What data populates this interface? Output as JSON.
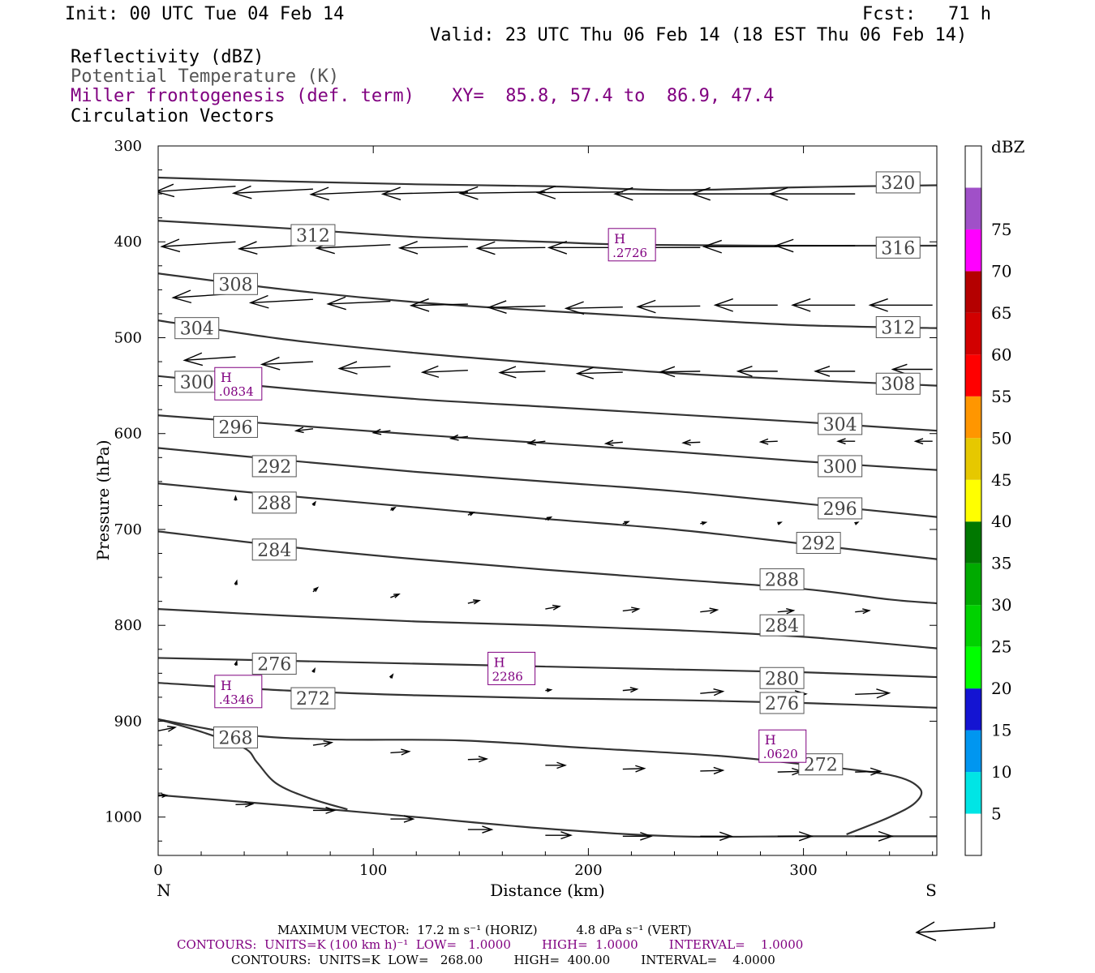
{
  "header": {
    "init": "Init: 00 UTC Tue 04 Feb 14",
    "fcst": "Fcst:   71 h",
    "valid": "Valid: 23 UTC Thu 06 Feb 14 (18 EST Thu 06 Feb 14)"
  },
  "legend_lines": {
    "reflectivity": "Reflectivity (dBZ)",
    "theta": "Potential Temperature (K)",
    "miller": "Miller frontogenesis (def. term)",
    "xy": "XY=  85.8, 57.4 to  86.9, 47.4",
    "circulation": "Circulation Vectors"
  },
  "colors": {
    "contour": "#333333",
    "purple": "#800080",
    "box_stroke": "#555555"
  },
  "chart_data": {
    "type": "contour",
    "xlabel": "Distance (km)",
    "ylabel": "Pressure (hPa)",
    "xlim": [
      0,
      362
    ],
    "ylim": [
      1040,
      300
    ],
    "x_ticks": [
      "0",
      "100",
      "200",
      "300"
    ],
    "y_ticks": [
      "300",
      "400",
      "500",
      "600",
      "700",
      "800",
      "900",
      "1000"
    ],
    "x_tick_values": [
      0,
      100,
      200,
      300
    ],
    "y_tick_values": [
      300,
      400,
      500,
      600,
      700,
      800,
      900,
      1000
    ],
    "left_end": "N",
    "right_end": "S",
    "theta_contours": [
      {
        "label": "320",
        "lx": 344,
        "lp": 338,
        "pts": [
          [
            0,
            333
          ],
          [
            60,
            337
          ],
          [
            120,
            340
          ],
          [
            180,
            342
          ],
          [
            240,
            346
          ],
          [
            300,
            343
          ],
          [
            362,
            341
          ]
        ]
      },
      {
        "label": "316",
        "lx": 344,
        "lp": 406,
        "pts": [
          [
            0,
            378
          ],
          [
            60,
            386
          ],
          [
            120,
            395
          ],
          [
            180,
            400
          ],
          [
            220,
            403
          ],
          [
            280,
            404
          ],
          [
            362,
            404
          ]
        ]
      },
      {
        "label": "312",
        "lx": 344,
        "lp": 489,
        "pts": [
          [
            0,
            433
          ],
          [
            60,
            450
          ],
          [
            120,
            463
          ],
          [
            180,
            472
          ],
          [
            240,
            480
          ],
          [
            300,
            487
          ],
          [
            362,
            490
          ]
        ]
      },
      {
        "label": "308",
        "lx": 344,
        "lp": 548,
        "pts": [
          [
            0,
            482
          ],
          [
            60,
            502
          ],
          [
            120,
            516
          ],
          [
            180,
            527
          ],
          [
            240,
            537
          ],
          [
            300,
            544
          ],
          [
            362,
            550
          ]
        ]
      },
      {
        "label": "304",
        "lx": 317,
        "lp": 590,
        "pts": [
          [
            0,
            540
          ],
          [
            60,
            553
          ],
          [
            120,
            564
          ],
          [
            180,
            572
          ],
          [
            240,
            580
          ],
          [
            300,
            588
          ],
          [
            362,
            597
          ]
        ]
      },
      {
        "label": "300",
        "lx": 317,
        "lp": 634,
        "pts": [
          [
            0,
            581
          ],
          [
            60,
            591
          ],
          [
            120,
            601
          ],
          [
            180,
            610
          ],
          [
            240,
            619
          ],
          [
            300,
            629
          ],
          [
            362,
            638
          ]
        ]
      },
      {
        "label": "296",
        "lx": 317,
        "lp": 678,
        "pts": [
          [
            0,
            615
          ],
          [
            60,
            628
          ],
          [
            120,
            640
          ],
          [
            180,
            650
          ],
          [
            240,
            660
          ],
          [
            300,
            673
          ],
          [
            362,
            687
          ]
        ]
      },
      {
        "label": "292",
        "lx": 307,
        "lp": 714,
        "pts": [
          [
            0,
            652
          ],
          [
            60,
            665
          ],
          [
            120,
            677
          ],
          [
            180,
            689
          ],
          [
            240,
            700
          ],
          [
            300,
            715
          ],
          [
            362,
            731
          ]
        ]
      },
      {
        "label": "288",
        "lx": 290,
        "lp": 752,
        "pts": [
          [
            0,
            702
          ],
          [
            60,
            718
          ],
          [
            120,
            731
          ],
          [
            180,
            742
          ],
          [
            240,
            752
          ],
          [
            300,
            762
          ],
          [
            340,
            773
          ],
          [
            362,
            777
          ]
        ]
      },
      {
        "label": "284",
        "lx": 290,
        "lp": 800,
        "pts": [
          [
            0,
            783
          ],
          [
            60,
            790
          ],
          [
            120,
            796
          ],
          [
            180,
            800
          ],
          [
            240,
            805
          ],
          [
            300,
            812
          ],
          [
            362,
            824
          ]
        ]
      },
      {
        "label": "280",
        "lx": 290,
        "lp": 855,
        "pts": [
          [
            0,
            834
          ],
          [
            60,
            837
          ],
          [
            120,
            840
          ],
          [
            180,
            843
          ],
          [
            240,
            846
          ],
          [
            300,
            849
          ],
          [
            362,
            854
          ]
        ]
      },
      {
        "label": "276",
        "lx": 290,
        "lp": 881,
        "pts": [
          [
            0,
            860
          ],
          [
            60,
            868
          ],
          [
            120,
            873
          ],
          [
            180,
            876
          ],
          [
            240,
            878
          ],
          [
            300,
            881
          ],
          [
            362,
            886
          ]
        ]
      },
      {
        "label": "272",
        "lx": 308,
        "lp": 945,
        "pts": [
          [
            0,
            898
          ],
          [
            40,
            914
          ],
          [
            80,
            919
          ],
          [
            140,
            920
          ],
          [
            200,
            928
          ],
          [
            260,
            936
          ],
          [
            300,
            945
          ],
          [
            340,
            956
          ],
          [
            354,
            970
          ],
          [
            352,
            985
          ],
          [
            340,
            1000
          ],
          [
            320,
            1018
          ]
        ]
      },
      {
        "label": "268",
        "lx": 36,
        "lp": 917,
        "pts": [
          [
            0,
            898
          ],
          [
            20,
            911
          ],
          [
            40,
            928
          ],
          [
            46,
            943
          ],
          [
            55,
            965
          ],
          [
            70,
            980
          ],
          [
            88,
            992
          ]
        ]
      },
      {
        "label": "",
        "lx": 0,
        "lp": 0,
        "pts": [
          [
            0,
            977
          ],
          [
            60,
            988
          ],
          [
            120,
            1000
          ],
          [
            180,
            1012
          ],
          [
            240,
            1020
          ],
          [
            300,
            1020
          ],
          [
            362,
            1020
          ]
        ]
      }
    ],
    "extra_labels": [
      {
        "label": "312",
        "lx": 72,
        "lp": 393
      },
      {
        "label": "308",
        "lx": 36,
        "lp": 444
      },
      {
        "label": "304",
        "lx": 18,
        "lp": 490
      },
      {
        "label": "300",
        "lx": 18,
        "lp": 546
      },
      {
        "label": "296",
        "lx": 36,
        "lp": 593
      },
      {
        "label": "292",
        "lx": 54,
        "lp": 634
      },
      {
        "label": "288",
        "lx": 54,
        "lp": 672
      },
      {
        "label": "284",
        "lx": 54,
        "lp": 721
      },
      {
        "label": "276",
        "lx": 54,
        "lp": 840
      },
      {
        "label": "272",
        "lx": 72,
        "lp": 876
      }
    ],
    "miller_highs": [
      {
        "label": "H",
        "value": ".2726",
        "x": 218,
        "p": 403
      },
      {
        "label": "H",
        "value": ".0834",
        "x": 35,
        "p": 548
      },
      {
        "label": "H",
        "value": "2286",
        "x": 162,
        "p": 845
      },
      {
        "label": "H",
        "value": ".4346",
        "x": 35,
        "p": 869
      },
      {
        "label": "H",
        "value": ".0620",
        "x": 288,
        "p": 926
      }
    ],
    "vectors": [
      {
        "x": 36,
        "p": 342,
        "u": -14,
        "v": 0.8
      },
      {
        "x": 72,
        "p": 345,
        "u": -14,
        "v": 0.6
      },
      {
        "x": 108,
        "p": 347,
        "u": -14,
        "v": 0.5
      },
      {
        "x": 144,
        "p": 348,
        "u": -15,
        "v": 0.3
      },
      {
        "x": 180,
        "p": 348,
        "u": -15,
        "v": 0.2
      },
      {
        "x": 216,
        "p": 348,
        "u": -15,
        "v": 0.1
      },
      {
        "x": 252,
        "p": 350,
        "u": -15,
        "v": 0
      },
      {
        "x": 288,
        "p": 350,
        "u": -15,
        "v": 0
      },
      {
        "x": 324,
        "p": 350,
        "u": -15,
        "v": 0
      },
      {
        "x": 36,
        "p": 400,
        "u": -13,
        "v": 0.7
      },
      {
        "x": 72,
        "p": 403,
        "u": -13,
        "v": 0.6
      },
      {
        "x": 108,
        "p": 403,
        "u": -13,
        "v": 0.5
      },
      {
        "x": 144,
        "p": 405,
        "u": -12,
        "v": 0.2
      },
      {
        "x": 180,
        "p": 406,
        "u": -12,
        "v": 0.1
      },
      {
        "x": 216,
        "p": 406,
        "u": -13,
        "v": 0
      },
      {
        "x": 252,
        "p": 406,
        "u": -13,
        "v": 0
      },
      {
        "x": 288,
        "p": 405,
        "u": -13,
        "v": 0
      },
      {
        "x": 324,
        "p": 404,
        "u": -14,
        "v": 0
      },
      {
        "x": 36,
        "p": 454,
        "u": -11,
        "v": 0.6
      },
      {
        "x": 72,
        "p": 460,
        "u": -11,
        "v": 0.5
      },
      {
        "x": 108,
        "p": 462,
        "u": -11,
        "v": 0.4
      },
      {
        "x": 144,
        "p": 465,
        "u": -10,
        "v": 0.2
      },
      {
        "x": 180,
        "p": 467,
        "u": -10,
        "v": 0.2
      },
      {
        "x": 216,
        "p": 468,
        "u": -10,
        "v": 0.2
      },
      {
        "x": 252,
        "p": 467,
        "u": -11,
        "v": 0.1
      },
      {
        "x": 288,
        "p": 466,
        "u": -11,
        "v": 0
      },
      {
        "x": 324,
        "p": 466,
        "u": -11,
        "v": 0
      },
      {
        "x": 360,
        "p": 466,
        "u": -11,
        "v": 0
      },
      {
        "x": 36,
        "p": 520,
        "u": -9,
        "v": 0.5
      },
      {
        "x": 72,
        "p": 525,
        "u": -9,
        "v": 0.4
      },
      {
        "x": 108,
        "p": 530,
        "u": -9,
        "v": 0.3
      },
      {
        "x": 144,
        "p": 534,
        "u": -8,
        "v": 0.3
      },
      {
        "x": 180,
        "p": 535,
        "u": -8,
        "v": 0.2
      },
      {
        "x": 216,
        "p": 536,
        "u": -8,
        "v": 0.2
      },
      {
        "x": 252,
        "p": 535,
        "u": -7,
        "v": 0.1
      },
      {
        "x": 288,
        "p": 535,
        "u": -7,
        "v": 0
      },
      {
        "x": 324,
        "p": 535,
        "u": -7,
        "v": 0
      },
      {
        "x": 360,
        "p": 533,
        "u": -7,
        "v": 0
      },
      {
        "x": 72,
        "p": 595,
        "u": -3,
        "v": 0.3
      },
      {
        "x": 108,
        "p": 597,
        "u": -3,
        "v": 0.3
      },
      {
        "x": 144,
        "p": 603,
        "u": -3,
        "v": 0.3
      },
      {
        "x": 180,
        "p": 608,
        "u": -3,
        "v": 0.3
      },
      {
        "x": 216,
        "p": 609,
        "u": -3,
        "v": 0.2
      },
      {
        "x": 252,
        "p": 609,
        "u": -3,
        "v": 0.1
      },
      {
        "x": 288,
        "p": 608,
        "u": -3,
        "v": 0.1
      },
      {
        "x": 324,
        "p": 608,
        "u": -3,
        "v": 0
      },
      {
        "x": 360,
        "p": 608,
        "u": -3,
        "v": 0
      },
      {
        "x": 36,
        "p": 670,
        "u": 0,
        "v": -0.6
      },
      {
        "x": 72,
        "p": 675,
        "u": 0.4,
        "v": -0.5
      },
      {
        "x": 108,
        "p": 680,
        "u": 0.8,
        "v": -0.4
      },
      {
        "x": 144,
        "p": 685,
        "u": 1,
        "v": -0.4
      },
      {
        "x": 180,
        "p": 690,
        "u": 1,
        "v": -0.4
      },
      {
        "x": 216,
        "p": 694,
        "u": 1,
        "v": -0.3
      },
      {
        "x": 252,
        "p": 694,
        "u": 1,
        "v": -0.2
      },
      {
        "x": 288,
        "p": 694,
        "u": 0.6,
        "v": -0.2
      },
      {
        "x": 324,
        "p": 694,
        "u": 0.5,
        "v": -0.2
      },
      {
        "x": 36,
        "p": 758,
        "u": 0.2,
        "v": -0.6
      },
      {
        "x": 72,
        "p": 765,
        "u": 0.8,
        "v": -0.6
      },
      {
        "x": 108,
        "p": 771,
        "u": 1.5,
        "v": -0.5
      },
      {
        "x": 144,
        "p": 777,
        "u": 2,
        "v": -0.4
      },
      {
        "x": 180,
        "p": 783,
        "u": 2.5,
        "v": -0.4
      },
      {
        "x": 216,
        "p": 785,
        "u": 2.8,
        "v": -0.3
      },
      {
        "x": 252,
        "p": 786,
        "u": 3,
        "v": -0.3
      },
      {
        "x": 288,
        "p": 786,
        "u": 2.8,
        "v": -0.2
      },
      {
        "x": 324,
        "p": 786,
        "u": 2.5,
        "v": -0.2
      },
      {
        "x": 36,
        "p": 842,
        "u": 0.2,
        "v": -0.6
      },
      {
        "x": 72,
        "p": 849,
        "u": 0.3,
        "v": -0.5
      },
      {
        "x": 108,
        "p": 855,
        "u": 0.4,
        "v": -0.5
      },
      {
        "x": 180,
        "p": 868,
        "u": 1,
        "v": -0.1
      },
      {
        "x": 216,
        "p": 868,
        "u": 2.5,
        "v": -0.2
      },
      {
        "x": 252,
        "p": 871,
        "u": 4,
        "v": -0.3
      },
      {
        "x": 288,
        "p": 873,
        "u": 5,
        "v": -0.2
      },
      {
        "x": 324,
        "p": 872,
        "u": 6,
        "v": -0.2
      },
      {
        "x": 0,
        "p": 910,
        "u": 3,
        "v": -0.5
      },
      {
        "x": 72,
        "p": 925,
        "u": 3.3,
        "v": -0.4
      },
      {
        "x": 108,
        "p": 933,
        "u": 3.3,
        "v": -0.2
      },
      {
        "x": 144,
        "p": 940,
        "u": 3.3,
        "v": -0.1
      },
      {
        "x": 180,
        "p": 946,
        "u": 3.5,
        "v": 0
      },
      {
        "x": 216,
        "p": 950,
        "u": 3.8,
        "v": -0.1
      },
      {
        "x": 252,
        "p": 952,
        "u": 4,
        "v": -0.1
      },
      {
        "x": 288,
        "p": 953,
        "u": 4.2,
        "v": -0.1
      },
      {
        "x": 324,
        "p": 953,
        "u": 4.5,
        "v": -0.1
      },
      {
        "x": 0,
        "p": 978,
        "u": 1.5,
        "v": -0.1
      },
      {
        "x": 36,
        "p": 987,
        "u": 3,
        "v": -0.1
      },
      {
        "x": 72,
        "p": 993,
        "u": 3.8,
        "v": 0
      },
      {
        "x": 108,
        "p": 1002,
        "u": 4,
        "v": 0
      },
      {
        "x": 144,
        "p": 1013,
        "u": 4.2,
        "v": 0
      },
      {
        "x": 180,
        "p": 1019,
        "u": 4.5,
        "v": 0
      },
      {
        "x": 216,
        "p": 1020,
        "u": 5,
        "v": 0
      },
      {
        "x": 252,
        "p": 1020,
        "u": 5.5,
        "v": 0
      },
      {
        "x": 288,
        "p": 1020,
        "u": 6,
        "v": 0
      },
      {
        "x": 324,
        "p": 1020,
        "u": 6.5,
        "v": 0
      }
    ],
    "colorbar": {
      "label": "dBZ",
      "ticks": [
        "5",
        "10",
        "15",
        "20",
        "25",
        "30",
        "35",
        "40",
        "45",
        "50",
        "55",
        "60",
        "65",
        "70",
        "75"
      ],
      "bins": [
        "#ffffff",
        "#00e5e5",
        "#0096f0",
        "#1414d2",
        "#00ff00",
        "#00d200",
        "#00aa00",
        "#007800",
        "#ffff00",
        "#e6c800",
        "#ff9600",
        "#ff0000",
        "#d20000",
        "#b40000",
        "#ff00ff",
        "#a050c8",
        "#ffffff"
      ]
    }
  },
  "footer": {
    "max_vector": "MAXIMUM VECTOR:  17.2 m s⁻¹ (HORIZ)          4.8 dPa s⁻¹ (VERT)",
    "contours1": "CONTOURS:  UNITS=K (100 km h)⁻¹  LOW=   1.0000        HIGH=  1.0000        INTERVAL=    1.0000",
    "contours2": "CONTOURS:  UNITS=K  LOW=   268.00        HIGH=  400.00        INTERVAL=    4.0000"
  }
}
